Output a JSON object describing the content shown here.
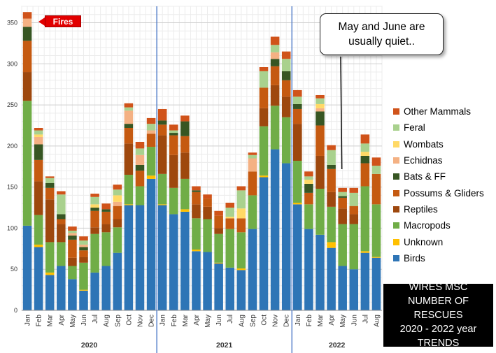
{
  "chart_data": {
    "type": "bar",
    "stacked": true,
    "title_lines": [
      "WIRES MSC",
      "NUMBER OF RESCUES",
      "2020 - 2022 year",
      "TRENDS"
    ],
    "callout": "May and June are usually quiet..",
    "annotation": "Fires",
    "ylim": [
      0,
      370
    ],
    "yticks": [
      0,
      50,
      100,
      150,
      200,
      250,
      300,
      350
    ],
    "grid": true,
    "legend_position": "right",
    "years": [
      {
        "label": "2020",
        "start": 0,
        "count": 12
      },
      {
        "label": "2021",
        "start": 12,
        "count": 12
      },
      {
        "label": "2022",
        "start": 24,
        "count": 8
      }
    ],
    "categories": [
      "Jan",
      "Feb",
      "Mar",
      "Apr",
      "May",
      "Jun",
      "Jul",
      "Aug",
      "Sep",
      "Oct",
      "Nov",
      "Dec",
      "Jan",
      "Feb",
      "Mar",
      "Apr",
      "May",
      "Jun",
      "Jul",
      "Aug",
      "Sep",
      "Oct",
      "Nov",
      "Dec",
      "Jan",
      "Feb",
      "Mar",
      "Apr",
      "May",
      "Jun",
      "Jul",
      "Aug"
    ],
    "series": [
      {
        "name": "Birds",
        "color": "#2e75b6",
        "values": [
          103,
          77,
          43,
          54,
          38,
          24,
          46,
          54,
          70,
          128,
          128,
          160,
          128,
          117,
          120,
          72,
          71,
          57,
          52,
          49,
          99,
          162,
          196,
          179,
          129,
          99,
          92,
          76,
          54,
          50,
          70,
          64
        ]
      },
      {
        "name": "Unknown",
        "color": "#ffc000",
        "values": [
          0,
          3,
          3,
          0,
          0,
          1,
          0,
          0,
          0,
          1,
          0,
          4,
          1,
          0,
          3,
          2,
          0,
          1,
          0,
          2,
          0,
          2,
          0,
          0,
          2,
          0,
          0,
          7,
          0,
          0,
          2,
          1
        ]
      },
      {
        "name": "Macropods",
        "color": "#70ad47",
        "values": [
          152,
          36,
          37,
          29,
          16,
          33,
          47,
          41,
          31,
          36,
          23,
          35,
          37,
          32,
          37,
          38,
          40,
          35,
          47,
          44,
          41,
          60,
          53,
          56,
          51,
          30,
          56,
          43,
          51,
          55,
          79,
          64
        ]
      },
      {
        "name": "Reptiles",
        "color": "#9e480e",
        "values": [
          35,
          41,
          52,
          22,
          10,
          7,
          8,
          10,
          10,
          38,
          0,
          0,
          47,
          40,
          32,
          17,
          15,
          7,
          0,
          0,
          0,
          22,
          25,
          25,
          45,
          0,
          40,
          18,
          19,
          12,
          0,
          0
        ]
      },
      {
        "name": "Possums & Gliders",
        "color": "#c55a11",
        "values": [
          38,
          26,
          14,
          6,
          22,
          8,
          20,
          15,
          16,
          19,
          19,
          16,
          13,
          24,
          20,
          15,
          10,
          15,
          13,
          17,
          29,
          25,
          23,
          20,
          18,
          14,
          37,
          28,
          13,
          10,
          28,
          37
        ]
      },
      {
        "name": "Bats & FF",
        "color": "#375623",
        "values": [
          17,
          19,
          6,
          6,
          5,
          4,
          4,
          3,
          0,
          5,
          7,
          0,
          5,
          3,
          18,
          2,
          0,
          0,
          0,
          0,
          0,
          0,
          9,
          11,
          6,
          11,
          17,
          5,
          2,
          0,
          9,
          0
        ]
      },
      {
        "name": "Echidnas",
        "color": "#f4b183",
        "values": [
          10,
          9,
          0,
          0,
          3,
          3,
          0,
          0,
          5,
          16,
          12,
          4,
          0,
          0,
          0,
          0,
          0,
          0,
          0,
          0,
          16,
          0,
          8,
          0,
          0,
          0,
          4,
          0,
          0,
          0,
          0,
          0
        ]
      },
      {
        "name": "Wombats",
        "color": "#ffd966",
        "values": [
          0,
          3,
          0,
          0,
          0,
          0,
          4,
          0,
          8,
          0,
          0,
          0,
          0,
          0,
          0,
          0,
          0,
          0,
          2,
          12,
          0,
          0,
          0,
          0,
          0,
          5,
          5,
          0,
          0,
          0,
          5,
          0
        ]
      },
      {
        "name": "Feral",
        "color": "#a9d18e",
        "values": [
          0,
          5,
          6,
          24,
          3,
          5,
          9,
          0,
          7,
          4,
          8,
          8,
          0,
          3,
          0,
          0,
          0,
          0,
          11,
          22,
          4,
          20,
          9,
          15,
          9,
          4,
          7,
          18,
          5,
          16,
          10,
          10
        ]
      },
      {
        "name": "Other Mammals",
        "color": "#d0531a",
        "values": [
          8,
          3,
          2,
          4,
          5,
          5,
          4,
          7,
          6,
          5,
          8,
          7,
          14,
          7,
          7,
          5,
          5,
          6,
          6,
          5,
          3,
          5,
          10,
          9,
          8,
          6,
          4,
          6,
          5,
          6,
          11,
          10
        ]
      }
    ]
  }
}
